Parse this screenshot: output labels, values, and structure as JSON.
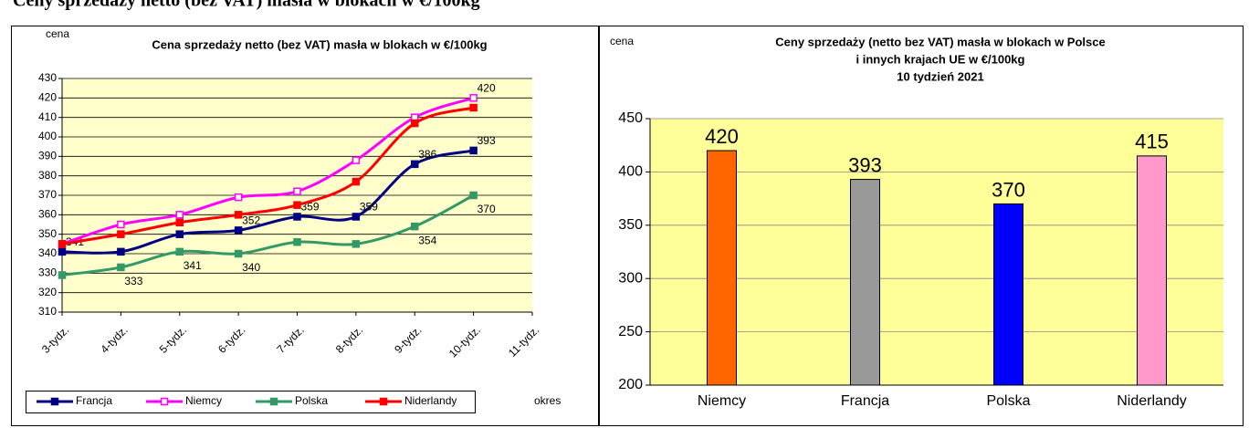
{
  "heading": "Ceny sprzedaży netto (bez VAT) masła w blokach w €/100kg",
  "chart_data": [
    {
      "type": "line",
      "title": "Cena sprzedaży netto (bez VAT) masła w blokach w €/100kg",
      "y_label": "cena",
      "x_label": "okres",
      "categories": [
        "3-tydz.",
        "4-tydz.",
        "5-tydz.",
        "6-tydz.",
        "7-tydz.",
        "8-tydz.",
        "9-tydz.",
        "10-tydz.",
        "11-tydz."
      ],
      "series": [
        {
          "name": "Francja",
          "color": "#000080",
          "values": [
            341,
            341,
            350,
            352,
            359,
            359,
            386,
            393,
            null
          ],
          "value_labels": [
            "341",
            null,
            null,
            "352",
            "359",
            "359",
            "386",
            "393",
            null
          ]
        },
        {
          "name": "Niemcy",
          "color": "#ff00ff",
          "values": [
            345,
            355,
            360,
            369,
            372,
            388,
            410,
            420,
            null
          ],
          "value_labels": [
            null,
            null,
            null,
            null,
            null,
            null,
            null,
            "420",
            null
          ]
        },
        {
          "name": "Polska",
          "color": "#339966",
          "values": [
            329,
            333,
            341,
            340,
            346,
            345,
            354,
            370,
            null
          ],
          "value_labels": [
            null,
            "333",
            "341",
            "340",
            null,
            null,
            "354",
            "370",
            null
          ]
        },
        {
          "name": "Niderlandy",
          "color": "#ff0000",
          "values": [
            345,
            350,
            356,
            360,
            365,
            377,
            407,
            415,
            null
          ],
          "value_labels": [
            null,
            null,
            null,
            null,
            null,
            null,
            null,
            null,
            null
          ]
        }
      ],
      "ylim": [
        310,
        430
      ],
      "yticks": [
        310,
        320,
        330,
        340,
        350,
        360,
        370,
        380,
        390,
        400,
        410,
        420,
        430
      ],
      "grid": true,
      "legend": "bottom",
      "background": "#ffffcc"
    },
    {
      "type": "bar",
      "title": [
        "Ceny sprzedaży (netto bez VAT) masła  w blokach w Polsce",
        "i  innych krajach UE w €/100kg",
        "10  tydzień 2021"
      ],
      "y_label": "cena",
      "categories": [
        "Niemcy",
        "Francja",
        "Polska",
        "Niderlandy"
      ],
      "values": [
        420,
        393,
        370,
        415
      ],
      "colors": [
        "#ff6600",
        "#999999",
        "#0000ff",
        "#ff99cc"
      ],
      "ylim": [
        200,
        450
      ],
      "yticks": [
        200,
        250,
        300,
        350,
        400,
        450
      ],
      "grid": true,
      "background": "#ffff99"
    }
  ]
}
